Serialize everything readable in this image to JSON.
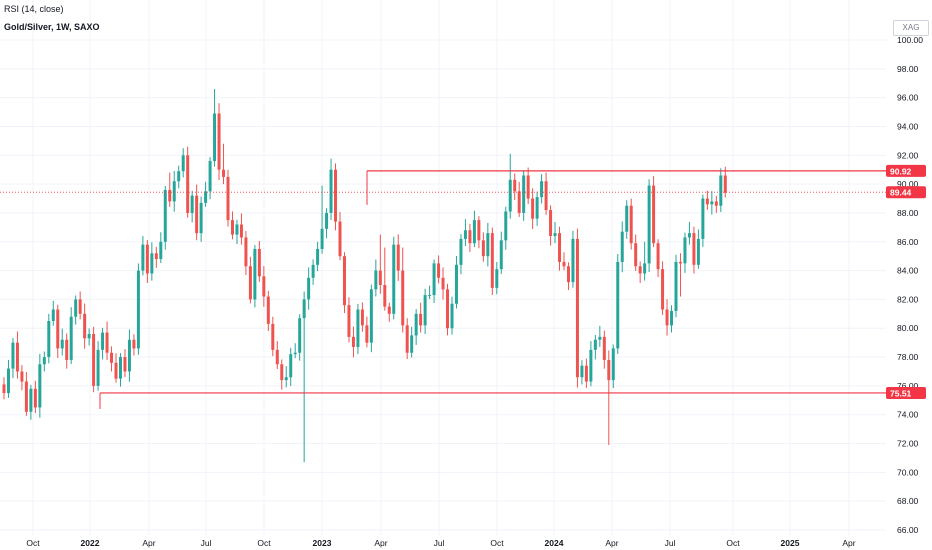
{
  "header": {
    "indicator": "RSI (14, close)",
    "title": "Gold/Silver, 1W, SAXO",
    "symbol": "XAG"
  },
  "colors": {
    "up": "#26a69a",
    "down": "#ef5350",
    "level_line": "#f23645",
    "last_price_line": "#f23645",
    "grid": "#f0f3fa",
    "axis_text": "#131722"
  },
  "chart_data": {
    "type": "candlestick",
    "title": "Gold/Silver, 1W, SAXO",
    "ylim": [
      66,
      100
    ],
    "y_ticks": [
      "100.00",
      "98.00",
      "96.00",
      "94.00",
      "92.00",
      "90.00",
      "88.00",
      "86.00",
      "84.00",
      "82.00",
      "80.00",
      "78.00",
      "76.00",
      "74.00",
      "72.00",
      "70.00",
      "68.00",
      "66.00"
    ],
    "x_ticks": [
      "Oct",
      "2022",
      "Apr",
      "Jul",
      "Oct",
      "2023",
      "Apr",
      "Jul",
      "Oct",
      "2024",
      "Apr",
      "Jul",
      "Oct",
      "2025",
      "Apr"
    ],
    "bold_x_ticks": [
      "2022",
      "2023",
      "2024",
      "2025"
    ],
    "closes": [
      75.5,
      77.2,
      79.0,
      77.0,
      76.3,
      74.2,
      75.8,
      74.5,
      77.5,
      78.0,
      80.5,
      81.3,
      78.6,
      79.2,
      77.8,
      80.8,
      82.0,
      81.0,
      79.3,
      79.6,
      76.0,
      78.5,
      79.7,
      78.3,
      77.6,
      76.5,
      78.0,
      77.0,
      79.2,
      78.6,
      84.0,
      85.8,
      83.8,
      85.2,
      84.8,
      86.0,
      89.6,
      88.8,
      90.2,
      90.9,
      92.0,
      88.0,
      89.2,
      86.6,
      88.7,
      89.5,
      91.6,
      94.9,
      91.0,
      90.5,
      87.5,
      86.5,
      87.2,
      86.3,
      84.3,
      82.0,
      85.5,
      83.6,
      82.2,
      80.3,
      78.5,
      77.5,
      76.4,
      76.6,
      78.2,
      78.3,
      80.7,
      82.0,
      83.5,
      84.4,
      85.5,
      86.9,
      88.0,
      91.0,
      87.4,
      85.0,
      81.6,
      79.4,
      78.7,
      81.3,
      80.2,
      79.0,
      82.7,
      84.0,
      83.0,
      81.5,
      81.0,
      85.8,
      84.0,
      80.2,
      78.3,
      79.5,
      81.0,
      80.2,
      82.3,
      82.3,
      84.5,
      83.5,
      82.7,
      80.0,
      81.7,
      84.4,
      86.2,
      86.8,
      85.9,
      87.5,
      86.1,
      85.0,
      86.6,
      82.8,
      84.1,
      86.1,
      88.1,
      90.3,
      89.5,
      88.0,
      90.6,
      89.0,
      87.6,
      89.1,
      90.2,
      88.2,
      86.4,
      86.6,
      84.6,
      84.3,
      83.2,
      86.2,
      76.6,
      77.4,
      76.3,
      78.5,
      79.2,
      79.4,
      77.8,
      76.4,
      78.6,
      84.6,
      86.7,
      88.5,
      85.9,
      84.3,
      83.8,
      84.5,
      89.9,
      85.9,
      84.1,
      81.3,
      80.2,
      81.2,
      84.6,
      84.5,
      86.3,
      86.6,
      84.4,
      86.2,
      89.0,
      88.6,
      88.8,
      88.5,
      90.6,
      89.4
    ],
    "level_lines": [
      {
        "price": 90.92,
        "label": "90.92"
      },
      {
        "price": 75.51,
        "label": "75.51"
      }
    ],
    "last_price": {
      "price": 89.44,
      "label": "89.44"
    }
  }
}
